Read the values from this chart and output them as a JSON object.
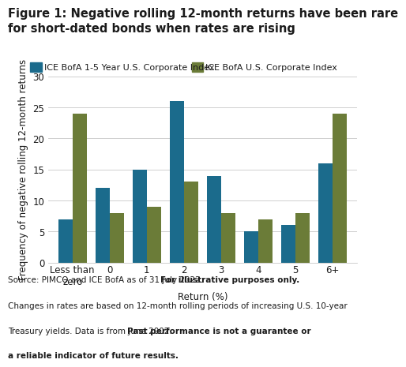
{
  "title_line1": "Figure 1: Negative rolling 12-month returns have been rare",
  "title_line2": "for short-dated bonds when rates are rising",
  "categories": [
    "Less than\nzero",
    "0",
    "1",
    "2",
    "3",
    "4",
    "5",
    "6+"
  ],
  "blue_values": [
    7,
    12,
    15,
    26,
    14,
    5,
    6,
    16
  ],
  "green_values": [
    24,
    8,
    9,
    13,
    8,
    7,
    8,
    24
  ],
  "blue_color": "#1b6b8c",
  "green_color": "#6b7c38",
  "xlabel": "Return (%)",
  "ylabel": "Frequency of negative rolling 12-month returns",
  "ylim": [
    0,
    30
  ],
  "yticks": [
    0,
    5,
    10,
    15,
    20,
    25,
    30
  ],
  "legend_labels": [
    "ICE BofA 1-5 Year U.S. Corporate Index",
    "ICE BofA U.S. Corporate Index"
  ],
  "background_color": "#ffffff",
  "title_color": "#1a1a1a",
  "title_fontsize": 10.5,
  "axis_fontsize": 8.5,
  "legend_fontsize": 8.0,
  "footnote_fontsize": 7.5,
  "footnote_line1_normal": "Source: PIMCO and ICE BofA as of 31 July 2022. ",
  "footnote_line1_bold": "For illustrative purposes only.",
  "footnote_line2": "Changes in rates are based on 12-month rolling periods of increasing U.S. 10-year",
  "footnote_line3_normal": "Treasury yields. Data is from June 2002. ",
  "footnote_line3_bold": "Past performance is not a guarantee or",
  "footnote_line4_bold": "a reliable indicator of future results."
}
